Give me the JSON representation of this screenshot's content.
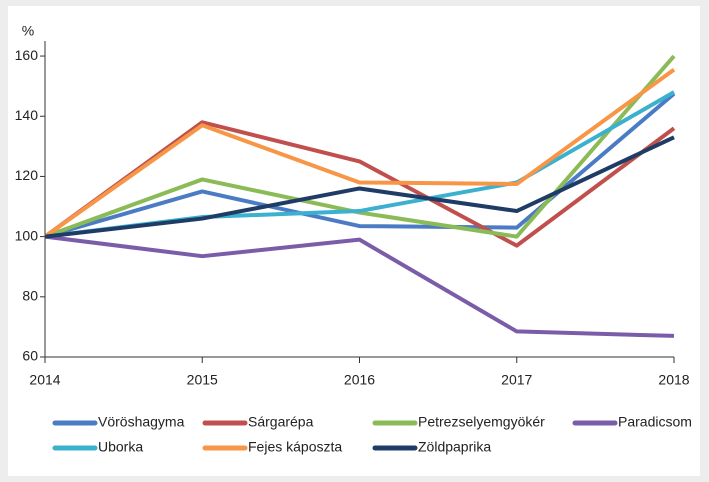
{
  "chart_data": {
    "type": "line",
    "y_label": "%",
    "categories": [
      "2014",
      "2015",
      "2016",
      "2017",
      "2018"
    ],
    "ylim": [
      60,
      165
    ],
    "yticks": [
      60,
      80,
      100,
      120,
      140,
      160
    ],
    "series": [
      {
        "name": "Vöröshagyma",
        "color": "#4a7bc4",
        "values": [
          100,
          115,
          103.5,
          103,
          147.5
        ]
      },
      {
        "name": "Sárgarépa",
        "color": "#c0504d",
        "values": [
          100,
          138,
          125,
          97,
          136
        ]
      },
      {
        "name": "Petrezselyemgyökér",
        "color": "#8bbb57",
        "values": [
          100,
          119,
          108,
          100,
          160
        ]
      },
      {
        "name": "Paradicsom",
        "color": "#7a5ca8",
        "values": [
          100,
          93.5,
          99,
          68.5,
          67
        ]
      },
      {
        "name": "Uborka",
        "color": "#3cb0cf",
        "values": [
          100,
          106.5,
          108.5,
          118,
          148
        ]
      },
      {
        "name": "Fejes káposzta",
        "color": "#f79646",
        "values": [
          100,
          137,
          118,
          117.5,
          155.5
        ]
      },
      {
        "name": "Zöldpaprika",
        "color": "#1f3c66",
        "values": [
          100,
          106,
          116,
          108.5,
          133
        ]
      }
    ]
  }
}
